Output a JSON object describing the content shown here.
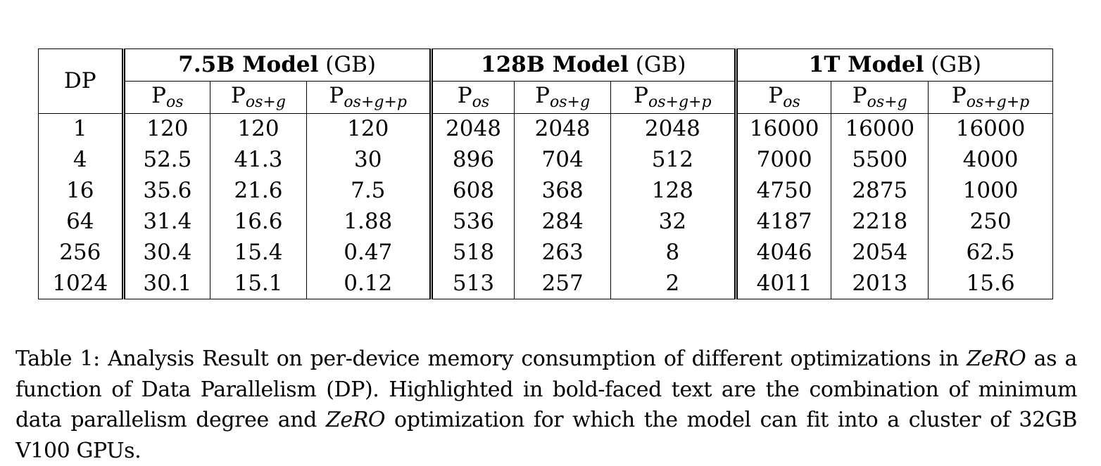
{
  "table": {
    "dp_header": "DP",
    "unit": "(GB)",
    "groups": [
      {
        "name": "7.5B Model"
      },
      {
        "name": "128B Model"
      },
      {
        "name": "1T Model"
      }
    ],
    "sub_base": "P",
    "sub_scripts": [
      "os",
      "os+g",
      "os+g+p"
    ],
    "rows": [
      {
        "dp": "1",
        "cells": [
          "120",
          "120",
          "120",
          "2048",
          "2048",
          "2048",
          "16000",
          "16000",
          "16000"
        ],
        "bold": []
      },
      {
        "dp": "4",
        "cells": [
          "52.5",
          "41.3",
          "30",
          "896",
          "704",
          "512",
          "7000",
          "5500",
          "4000"
        ],
        "bold": [
          2
        ]
      },
      {
        "dp": "16",
        "cells": [
          "35.6",
          "21.6",
          "7.5",
          "608",
          "368",
          "128",
          "4750",
          "2875",
          "1000"
        ],
        "bold": [
          1
        ]
      },
      {
        "dp": "64",
        "cells": [
          "31.4",
          "16.6",
          "1.88",
          "536",
          "284",
          "32",
          "4187",
          "2218",
          "250"
        ],
        "bold": [
          0,
          5
        ]
      },
      {
        "dp": "256",
        "cells": [
          "30.4",
          "15.4",
          "0.47",
          "518",
          "263",
          "8",
          "4046",
          "2054",
          "62.5"
        ],
        "bold": []
      },
      {
        "dp": "1024",
        "cells": [
          "30.1",
          "15.1",
          "0.12",
          "513",
          "257",
          "2",
          "4011",
          "2013",
          "15.6"
        ],
        "bold": [
          8
        ]
      }
    ]
  },
  "caption": {
    "part1": "Table 1: Analysis Result on per-device memory consumption of different optimizations in ",
    "zero1": "ZeRO",
    "part2": " as a function of Data Parallelism (DP). Highlighted in bold-faced text are the combination of minimum data parallelism degree and ",
    "zero2": "ZeRO",
    "part3": " optimization for which the model can fit into a cluster of 32GB V100 GPUs."
  }
}
